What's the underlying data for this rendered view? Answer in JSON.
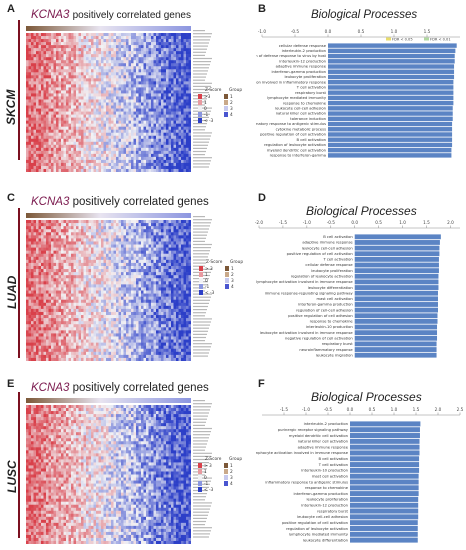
{
  "panels": {
    "A": {
      "label": "A",
      "cohort": "SKCM"
    },
    "B": {
      "label": "B"
    },
    "C": {
      "label": "C",
      "cohort": "LUAD"
    },
    "D": {
      "label": "D"
    },
    "E": {
      "label": "E",
      "cohort": "LUSC"
    },
    "F": {
      "label": "F"
    }
  },
  "heatmap": {
    "gene": "KCNA3",
    "title_suffix": "positively correlated genes",
    "legend_zscore": "Z-Score",
    "legend_group": "Group",
    "legend_values": [
      ">3",
      "1",
      "0",
      "-1",
      "< -3"
    ],
    "legend_values_alt": [
      "> 3",
      "1",
      "0",
      "-1",
      "< -3"
    ],
    "group_values": [
      "1",
      "2",
      "3",
      "4"
    ]
  },
  "colors": {
    "high": "#d9404a",
    "mid": "#f2f2f5",
    "low": "#2c3fc8",
    "bar": "#5b84c4",
    "title_bar_dark": "#7c5838",
    "title_bar_light": "#8c96e0",
    "border": "#7b1020"
  },
  "chart_data": [
    {
      "type": "bar",
      "panel": "B",
      "title": "Biological Processes",
      "orientation": "horizontal",
      "xlim": [
        -1.0,
        2.0
      ],
      "xticks": [
        "-1.0",
        "-0.5",
        "0.0",
        "0.5",
        "1.0",
        "1.5"
      ],
      "legend": [
        "FDR < 0.05",
        "FDR < 0.01"
      ],
      "categories": [
        "cellular defense response",
        "interleukin-2 production",
        "regulation of defense response to virus by host",
        "interleukin-12 production",
        "adaptive immune response",
        "interferon-gamma production",
        "leukocyte proliferation",
        "leukocyte activation involved in inflammatory response",
        "T cell activation",
        "respiratory burst",
        "lymphocyte mediated immunity",
        "response to chemokine",
        "leukocyte cell-cell adhesion",
        "natural killer cell activation",
        "tolerance induction",
        "inflammatory response to antigenic stimulus",
        "cytokine metabolic process",
        "positive regulation of cell activation",
        "B cell activation",
        "regulation of leukocyte activation",
        "myeloid dendritic cell activation",
        "response to interferon-gamma"
      ],
      "values": [
        1.95,
        1.93,
        1.92,
        1.92,
        1.91,
        1.91,
        1.91,
        1.9,
        1.9,
        1.9,
        1.9,
        1.9,
        1.89,
        1.89,
        1.89,
        1.88,
        1.88,
        1.88,
        1.88,
        1.88,
        1.87,
        1.87
      ]
    },
    {
      "type": "bar",
      "panel": "D",
      "title": "Biological Processes",
      "orientation": "horizontal",
      "xlim": [
        -2.0,
        2.2
      ],
      "xticks": [
        "-2.0",
        "-1.5",
        "-1.0",
        "-0.5",
        "0.0",
        "0.5",
        "1.0",
        "1.5",
        "2.0"
      ],
      "categories": [
        "B cell activation",
        "adaptive immune response",
        "leukocyte cell-cell adhesion",
        "positive regulation of cell activation",
        "T cell activation",
        "cellular defense response",
        "leukocyte proliferation",
        "regulation of leukocyte activation",
        "lymphocyte activation involved in immune response",
        "leukocyte differentiation",
        "immune response-regulating signaling pathway",
        "mast cell activation",
        "interferon-gamma production",
        "regulation of cell-cell adhesion",
        "positive regulation of cell adhesion",
        "response to chemokine",
        "interleukin-10 production",
        "leukocyte activation involved in immune response",
        "negative regulation of cell activation",
        "respiratory burst",
        "neuroinflammatory response",
        "leukocyte migration"
      ],
      "values": [
        1.8,
        1.78,
        1.77,
        1.77,
        1.76,
        1.76,
        1.76,
        1.75,
        1.75,
        1.75,
        1.74,
        1.74,
        1.74,
        1.74,
        1.73,
        1.73,
        1.72,
        1.72,
        1.72,
        1.71,
        1.71,
        1.71
      ]
    },
    {
      "type": "bar",
      "panel": "F",
      "title": "Biological Processes",
      "orientation": "horizontal",
      "xlim": [
        -2.0,
        2.5
      ],
      "xticks": [
        "-1.5",
        "-1.0",
        "-0.5",
        "0.0",
        "0.5",
        "1.0",
        "1.5",
        "2.0",
        "2.5"
      ],
      "categories": [
        "interleukin-2 production",
        "purinergic receptor signaling pathway",
        "myeloid dendritic cell activation",
        "natural killer cell activation",
        "adaptive immune response",
        "lymphocyte activation involved in immune response",
        "B cell activation",
        "T cell activation",
        "interleukin-10 production",
        "mast cell activation",
        "inflammatory response to antigenic stimulus",
        "response to chemokine",
        "interferon-gamma production",
        "leukocyte proliferation",
        "interleukin-12 production",
        "respiratory burst",
        "leukocyte cell-cell adhesion",
        "positive regulation of cell activation",
        "regulation of leukocyte activation",
        "lymphocyte mediated immunity",
        "leukocyte differentiation"
      ],
      "values": [
        1.6,
        1.59,
        1.59,
        1.58,
        1.58,
        1.58,
        1.57,
        1.57,
        1.57,
        1.56,
        1.56,
        1.56,
        1.56,
        1.55,
        1.55,
        1.55,
        1.55,
        1.54,
        1.54,
        1.54,
        1.54
      ]
    }
  ]
}
